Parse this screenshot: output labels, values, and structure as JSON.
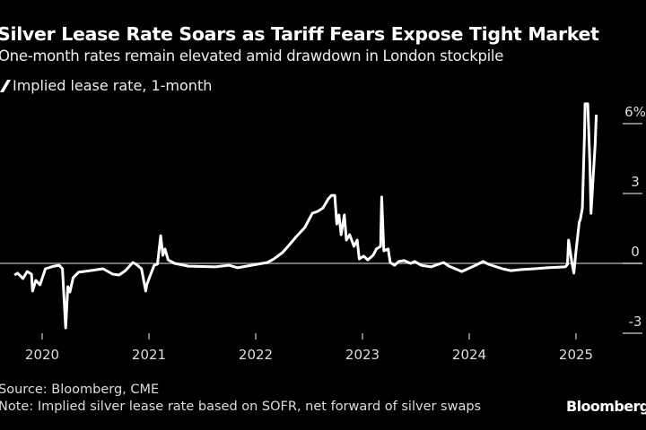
{
  "header": {
    "title": "Silver Lease Rate Soars as Tariff Fears Expose Tight Market",
    "subtitle": "One-month rates remain elevated amid drawdown in London stockpile"
  },
  "footer": {
    "source": "Source: Bloomberg, CME",
    "note": "Note: Implied silver lease rate based on SOFR, net forward of silver swaps",
    "logo": "Bloomberg"
  },
  "chart_data": {
    "type": "line",
    "title": "Silver Lease Rate Soars as Tariff Fears Expose Tight Market",
    "subtitle": "One-month rates remain elevated amid drawdown in London stockpile",
    "xlabel": "",
    "ylabel": "",
    "xlim": [
      2019.74,
      2025.3
    ],
    "ylim": [
      -3,
      6
    ],
    "y_axis_side": "right",
    "y_unit": "%",
    "y_ticks": [
      -3,
      0,
      3,
      6
    ],
    "y_tick_labels": [
      "-3",
      "0",
      "3",
      "6%"
    ],
    "x_ticks": [
      2020,
      2021,
      2022,
      2023,
      2024,
      2025
    ],
    "x_tick_labels": [
      "2020",
      "2021",
      "2022",
      "2023",
      "2024",
      "2025"
    ],
    "grid": false,
    "zero_line": true,
    "legend_position": "top-left",
    "colors": {
      "background": "#000000",
      "line": "#ffffff",
      "zero_line": "#9a9a9a"
    },
    "series": [
      {
        "name": "Implied lease rate, 1-month",
        "x": [
          2019.74,
          2019.77,
          2019.82,
          2019.86,
          2019.9,
          2019.91,
          2019.94,
          2019.98,
          2020.03,
          2020.11,
          2020.16,
          2020.19,
          2020.22,
          2020.24,
          2020.26,
          2020.29,
          2020.34,
          2020.45,
          2020.57,
          2020.66,
          2020.72,
          2020.78,
          2020.85,
          2020.88,
          2020.93,
          2020.97,
          2020.98,
          2021.02,
          2021.05,
          2021.08,
          2021.11,
          2021.13,
          2021.15,
          2021.18,
          2021.24,
          2021.37,
          2021.62,
          2021.75,
          2021.83,
          2021.96,
          2022.11,
          2022.17,
          2022.25,
          2022.31,
          2022.38,
          2022.46,
          2022.53,
          2022.58,
          2022.63,
          2022.68,
          2022.71,
          2022.74,
          2022.76,
          2022.78,
          2022.8,
          2022.83,
          2022.85,
          2022.88,
          2022.92,
          2022.95,
          2022.97,
          2023.01,
          2023.05,
          2023.1,
          2023.13,
          2023.17,
          2023.18,
          2023.2,
          2023.24,
          2023.26,
          2023.3,
          2023.34,
          2023.39,
          2023.45,
          2023.49,
          2023.55,
          2023.64,
          2023.76,
          2023.81,
          2023.93,
          2024.06,
          2024.13,
          2024.18,
          2024.31,
          2024.39,
          2024.48,
          2024.61,
          2024.73,
          2024.9,
          2024.92,
          2024.93,
          2024.96,
          2024.98,
          2025.0,
          2025.03,
          2025.04,
          2025.06,
          2025.08,
          2025.085,
          2025.11,
          2025.13,
          2025.14,
          2025.16,
          2025.18,
          2025.19
        ],
        "y": [
          -0.5,
          -0.42,
          -0.65,
          -0.35,
          -0.46,
          -1.19,
          -0.73,
          -0.92,
          -0.23,
          -0.12,
          -0.08,
          -0.23,
          -2.77,
          -1.0,
          -1.23,
          -0.62,
          -0.38,
          -0.31,
          -0.23,
          -0.46,
          -0.5,
          -0.31,
          0.04,
          -0.04,
          -0.23,
          -1.19,
          -0.92,
          -0.42,
          -0.08,
          -0.04,
          1.19,
          0.35,
          0.62,
          0.15,
          0,
          -0.12,
          -0.15,
          -0.08,
          -0.19,
          -0.08,
          0.04,
          0.19,
          0.46,
          0.77,
          1.15,
          1.54,
          2.15,
          2.23,
          2.38,
          2.77,
          2.92,
          2.92,
          1.69,
          2.08,
          1.23,
          2.08,
          1.0,
          1.23,
          0.73,
          1.0,
          0.19,
          0.31,
          0.15,
          0.35,
          0.62,
          0.73,
          2.85,
          0.54,
          0.62,
          0.04,
          -0.08,
          0.08,
          0.12,
          0,
          0.08,
          -0.08,
          -0.15,
          0.04,
          -0.12,
          -0.35,
          -0.08,
          0.08,
          -0.04,
          -0.23,
          -0.31,
          -0.27,
          -0.23,
          -0.19,
          -0.15,
          -0.04,
          1.0,
          0.08,
          -0.42,
          0.54,
          1.77,
          1.88,
          2.38,
          5.62,
          6.85,
          6.85,
          4.23,
          2.15,
          3.62,
          5.15,
          6.38
        ]
      }
    ]
  }
}
